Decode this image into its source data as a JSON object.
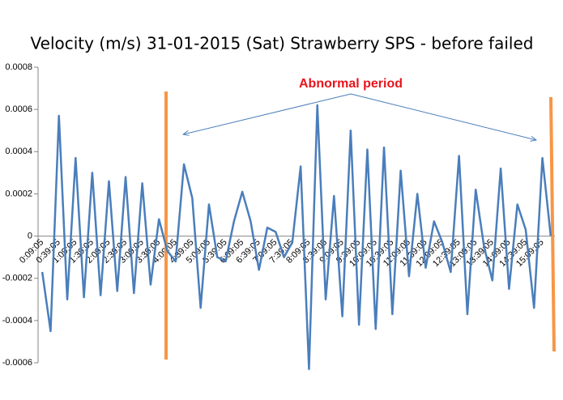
{
  "chart_data": {
    "type": "line",
    "title": "Velocity (m/s) 31-01-2015 (Sat) Strawberry SPS - before failed",
    "annotation": "Abnormal period",
    "categories": [
      "0:09:05",
      null,
      "0:39:05",
      null,
      "1:09:05",
      null,
      "1:39:05",
      null,
      "2:09:05",
      null,
      "2:39:05",
      null,
      "3:09:05",
      null,
      "3:39:05",
      null,
      "4:09:05",
      null,
      "4:39:05",
      null,
      "5:09:05",
      null,
      "5:39:05",
      null,
      "6:09:05",
      null,
      "6:39:05",
      null,
      "7:09:05",
      null,
      "7:39:05",
      null,
      "8:09:05",
      null,
      "8:39:05",
      null,
      "9:09:05",
      null,
      "9:39:05",
      null,
      "10:09:05",
      null,
      "10:39:05",
      null,
      "11:09:05",
      null,
      "11:39:05",
      null,
      "12:09:05",
      null,
      "12:39:05",
      null,
      "13:09:05",
      null,
      "13:39:05",
      null,
      "14:09:05",
      null,
      "14:39:05",
      null,
      "15:09:05",
      null
    ],
    "series": [
      {
        "name": "Velocity",
        "color": "#4a7ebb",
        "values": [
          -0.00017,
          -0.00045,
          0.00057,
          -0.0003,
          0.00037,
          -0.00029,
          0.0003,
          -0.00028,
          0.00026,
          -0.00026,
          0.00028,
          -0.00027,
          0.00025,
          -0.00023,
          8e-05,
          -7e-05,
          -0.00012,
          0.00034,
          0.00018,
          -0.00034,
          0.00015,
          -0.0001,
          -0.00012,
          7e-05,
          0.00021,
          7e-05,
          -0.00016,
          4e-05,
          2e-05,
          -0.0001,
          -3e-05,
          0.00033,
          -0.00063,
          0.00062,
          -0.0003,
          0.00019,
          -0.00038,
          0.0005,
          -0.00042,
          0.00041,
          -0.00044,
          0.00042,
          -0.00037,
          0.00031,
          -0.00019,
          0.0002,
          -0.00015,
          7e-05,
          -3e-05,
          -0.00017,
          0.00038,
          -0.00037,
          0.00022,
          -5e-05,
          -0.00021,
          0.00032,
          -0.00025,
          0.00015,
          3e-05,
          -0.00034,
          0.00037,
          0
        ]
      }
    ],
    "ylim": [
      -0.0006,
      0.0008
    ],
    "yticks": [
      -0.0006,
      -0.0004,
      -0.0002,
      0,
      0.0002,
      0.0004,
      0.0006,
      0.0008
    ],
    "grid": false
  }
}
